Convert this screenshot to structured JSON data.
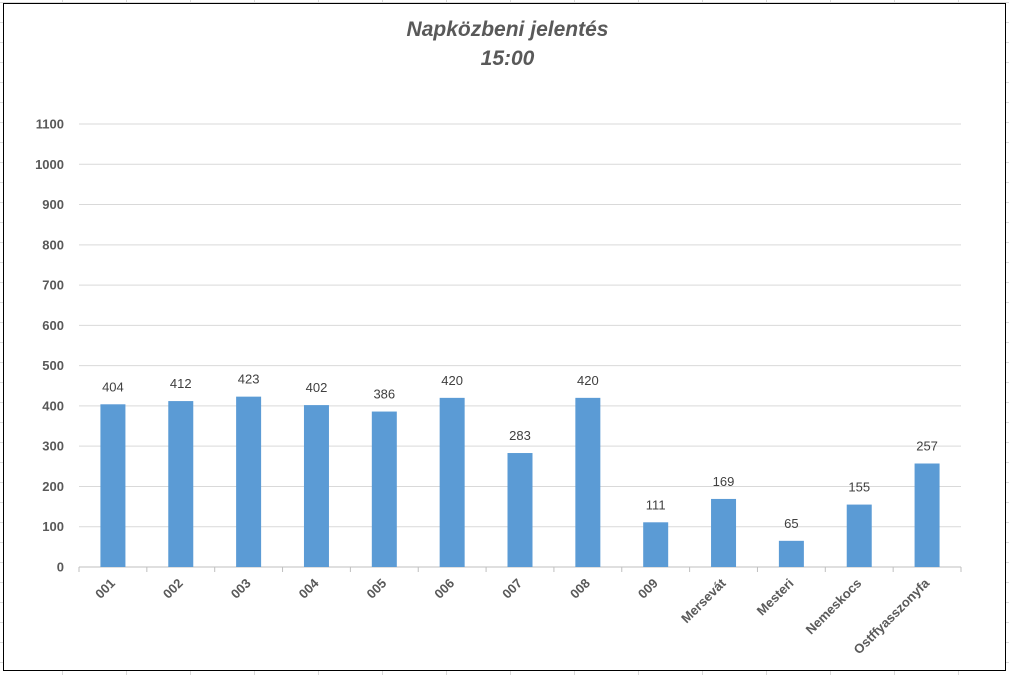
{
  "chart_data": {
    "type": "bar",
    "title": "Napközbeni jelentés",
    "subtitle": "15:00",
    "xlabel": "",
    "ylabel": "",
    "categories": [
      "001",
      "002",
      "003",
      "004",
      "005",
      "006",
      "007",
      "008",
      "009",
      "Mersevát",
      "Mesteri",
      "Nemeskocs",
      "Ostffyasszonyfa"
    ],
    "values": [
      404,
      412,
      423,
      402,
      386,
      420,
      283,
      420,
      111,
      169,
      65,
      155,
      257
    ],
    "ylim": [
      0,
      1100
    ],
    "yticks": [
      0,
      100,
      200,
      300,
      400,
      500,
      600,
      700,
      800,
      900,
      1000,
      1100
    ],
    "grid": true,
    "data_labels": true,
    "legend": "none",
    "colors": {
      "bar": "#5b9bd5",
      "gridline": "#d9d9d9",
      "axis_text": "#595959",
      "label_text": "#404040"
    }
  }
}
